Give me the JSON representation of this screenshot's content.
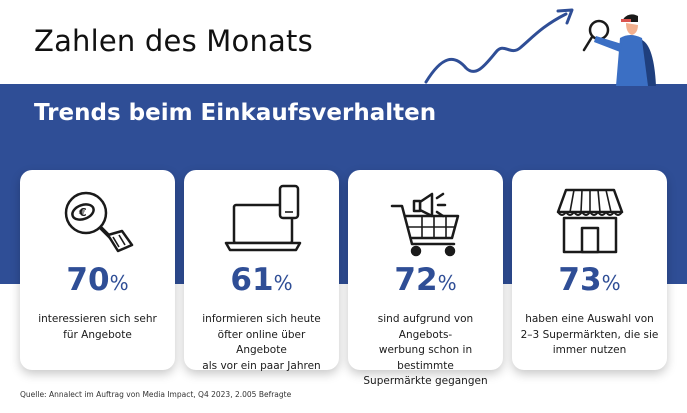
{
  "header": {
    "title": "Zahlen des Monats"
  },
  "subtitle": "Trends beim Einkaufsverhalten",
  "cards": [
    {
      "icon": "magnifier-euro-coin-icon",
      "value": "70",
      "unit": "%",
      "text": "interessieren sich sehr\nfür Angebote"
    },
    {
      "icon": "laptop-smartphone-icon",
      "value": "61",
      "unit": "%",
      "text": "informieren sich heute\nöfter online über Angebote\nals vor ein paar Jahren"
    },
    {
      "icon": "shopping-cart-megaphone-icon",
      "value": "72",
      "unit": "%",
      "text": "sind aufgrund von Angebots-\nwerbung schon in bestimmte\nSupermärkte gegangen"
    },
    {
      "icon": "storefront-icon",
      "value": "73",
      "unit": "%",
      "text": "haben eine Auswahl von\n2–3 Supermärkten, die sie\nimmer nutzen"
    }
  ],
  "source": "Quelle: Annalect im Auftrag von Media Impact, Q4 2023, 2.005 Befragte",
  "colors": {
    "brand_blue": "#2f4e96",
    "background": "#ffffff"
  }
}
